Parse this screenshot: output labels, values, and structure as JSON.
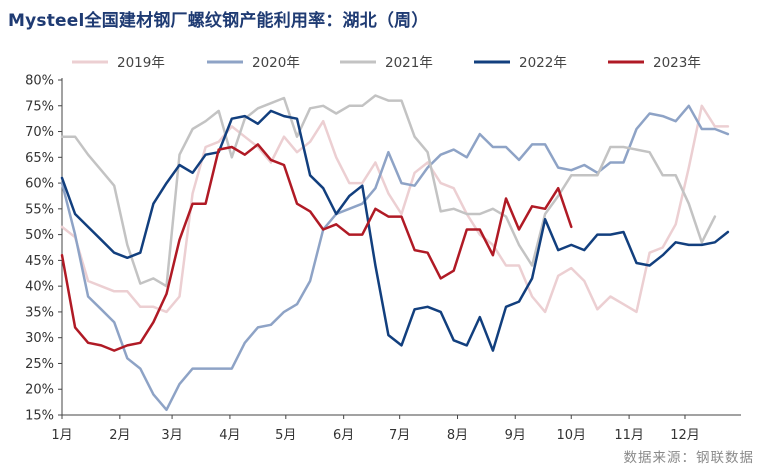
{
  "title": "Mysteel全国建材钢厂螺纹钢产能利用率：湖北（周）",
  "source": "数据来源：钢联数据",
  "colors": {
    "2019": "#eccfd2",
    "2020": "#8ea3c6",
    "2021": "#c3c3c3",
    "2022": "#123f7e",
    "2023": "#b01a25"
  },
  "chart_data": {
    "type": "line",
    "title": "Mysteel全国建材钢厂螺纹钢产能利用率：湖北（周）",
    "xlabel": "",
    "ylabel": "",
    "x_unit": "week",
    "xlim": [
      1,
      53
    ],
    "ylim": [
      15,
      80
    ],
    "y_ticks": [
      "15%",
      "20%",
      "25%",
      "30%",
      "35%",
      "40%",
      "45%",
      "50%",
      "55%",
      "60%",
      "65%",
      "70%",
      "75%",
      "80%"
    ],
    "x_ticks": [
      {
        "label": "1月",
        "week": 1
      },
      {
        "label": "2月",
        "week": 5.43
      },
      {
        "label": "3月",
        "week": 9.43
      },
      {
        "label": "4月",
        "week": 13.86
      },
      {
        "label": "5月",
        "week": 18.14
      },
      {
        "label": "6月",
        "week": 22.57
      },
      {
        "label": "7月",
        "week": 26.86
      },
      {
        "label": "8月",
        "week": 31.29
      },
      {
        "label": "9月",
        "week": 35.71
      },
      {
        "label": "10月",
        "week": 40
      },
      {
        "label": "11月",
        "week": 44.43
      },
      {
        "label": "12月",
        "week": 48.71
      }
    ],
    "grid": false,
    "legend_position": "top",
    "series": [
      {
        "name": "2019年",
        "color": "#eccfd2",
        "values": [
          51.5,
          49.5,
          41,
          40,
          39,
          39,
          36,
          36,
          35,
          38,
          58,
          67,
          68,
          71,
          69,
          67,
          64,
          69,
          66,
          68,
          72,
          65,
          60,
          60,
          64,
          58,
          54,
          62,
          64,
          60,
          59,
          54,
          50,
          48,
          44,
          44,
          38,
          35,
          42,
          43.5,
          41,
          35.5,
          38,
          36.5,
          35,
          46.5,
          47.5,
          52,
          63,
          75,
          71,
          71
        ]
      },
      {
        "name": "2020年",
        "color": "#8ea3c6",
        "values": [
          60,
          50,
          38,
          35.5,
          33,
          26,
          24,
          19,
          16,
          21,
          24,
          24,
          24,
          24,
          29,
          32,
          32.5,
          35,
          36.5,
          41,
          51,
          54,
          55,
          56,
          59,
          66,
          60,
          59.5,
          63,
          65.5,
          66.5,
          65,
          69.5,
          67,
          67,
          64.5,
          67.5,
          67.5,
          63,
          62.5,
          63.5,
          62,
          64,
          64,
          70.5,
          73.5,
          73,
          72,
          75,
          70.5,
          70.5,
          69.5
        ]
      },
      {
        "name": "2021年",
        "color": "#c3c3c3",
        "values": [
          69,
          69,
          65.5,
          62.5,
          59.5,
          48,
          40.5,
          41.5,
          40,
          65.5,
          70.5,
          72,
          74,
          65,
          72.5,
          74.5,
          75.5,
          76.5,
          69,
          74.5,
          75,
          73.5,
          75,
          75,
          77,
          76,
          76,
          69,
          66,
          54.5,
          55,
          54,
          54,
          55,
          53.5,
          48,
          44,
          54,
          57.5,
          61.5,
          61.5,
          61.5,
          67,
          67,
          66.5,
          66,
          61.5,
          61.5,
          56,
          48.5,
          53.5
        ]
      },
      {
        "name": "2022年",
        "color": "#123f7e",
        "values": [
          61,
          54,
          51.5,
          49,
          46.5,
          45.5,
          46.5,
          56,
          60,
          63.5,
          62,
          65.5,
          66,
          72.5,
          73,
          71.5,
          74,
          73,
          72.5,
          61.5,
          59,
          54,
          57.5,
          59.5,
          44,
          30.5,
          28.5,
          35.5,
          36,
          35,
          29.5,
          28.5,
          34,
          27.5,
          36,
          37,
          41.5,
          53,
          47,
          48,
          47,
          50,
          50,
          50.5,
          44.5,
          44,
          46,
          48.5,
          48,
          48,
          48.5,
          50.5
        ]
      },
      {
        "name": "2023年",
        "color": "#b01a25",
        "values": [
          46,
          32,
          29,
          28.5,
          27.5,
          28.5,
          29,
          33,
          38.5,
          49,
          56,
          56,
          66.5,
          67,
          65.5,
          67.5,
          64.5,
          63.5,
          56,
          54.5,
          51,
          52,
          50,
          50,
          55,
          53.5,
          53.5,
          47,
          46.5,
          41.5,
          43,
          51,
          51,
          46,
          57,
          51,
          55.5,
          55,
          59,
          51.5
        ]
      }
    ]
  }
}
